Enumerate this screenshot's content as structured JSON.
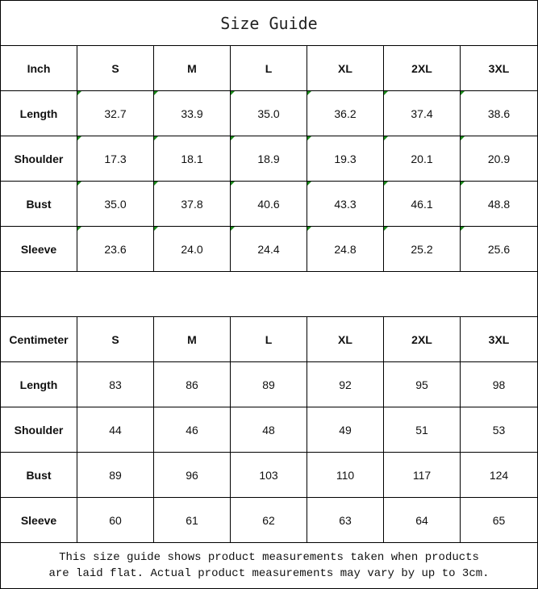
{
  "title": "Size Guide",
  "inch": {
    "header": [
      "Inch",
      "S",
      "M",
      "L",
      "XL",
      "2XL",
      "3XL"
    ],
    "rows": [
      [
        "Length",
        "32.7",
        "33.9",
        "35.0",
        "36.2",
        "37.4",
        "38.6"
      ],
      [
        "Shoulder",
        "17.3",
        "18.1",
        "18.9",
        "19.3",
        "20.1",
        "20.9"
      ],
      [
        "Bust",
        "35.0",
        "37.8",
        "40.6",
        "43.3",
        "46.1",
        "48.8"
      ],
      [
        "Sleeve",
        "23.6",
        "24.0",
        "24.4",
        "24.8",
        "25.2",
        "25.6"
      ]
    ]
  },
  "centimeter": {
    "header": [
      "Centimeter",
      "S",
      "M",
      "L",
      "XL",
      "2XL",
      "3XL"
    ],
    "rows": [
      [
        "Length",
        "83",
        "86",
        "89",
        "92",
        "95",
        "98"
      ],
      [
        "Shoulder",
        "44",
        "46",
        "48",
        "49",
        "51",
        "53"
      ],
      [
        "Bust",
        "89",
        "96",
        "103",
        "110",
        "117",
        "124"
      ],
      [
        "Sleeve",
        "60",
        "61",
        "62",
        "63",
        "64",
        "65"
      ]
    ]
  },
  "note": {
    "line1": "This size guide shows product measurements taken when products",
    "line2": "are laid flat. Actual product measurements may vary by up to 3cm."
  },
  "colors": {
    "error_flag": "#1a8a1a"
  }
}
